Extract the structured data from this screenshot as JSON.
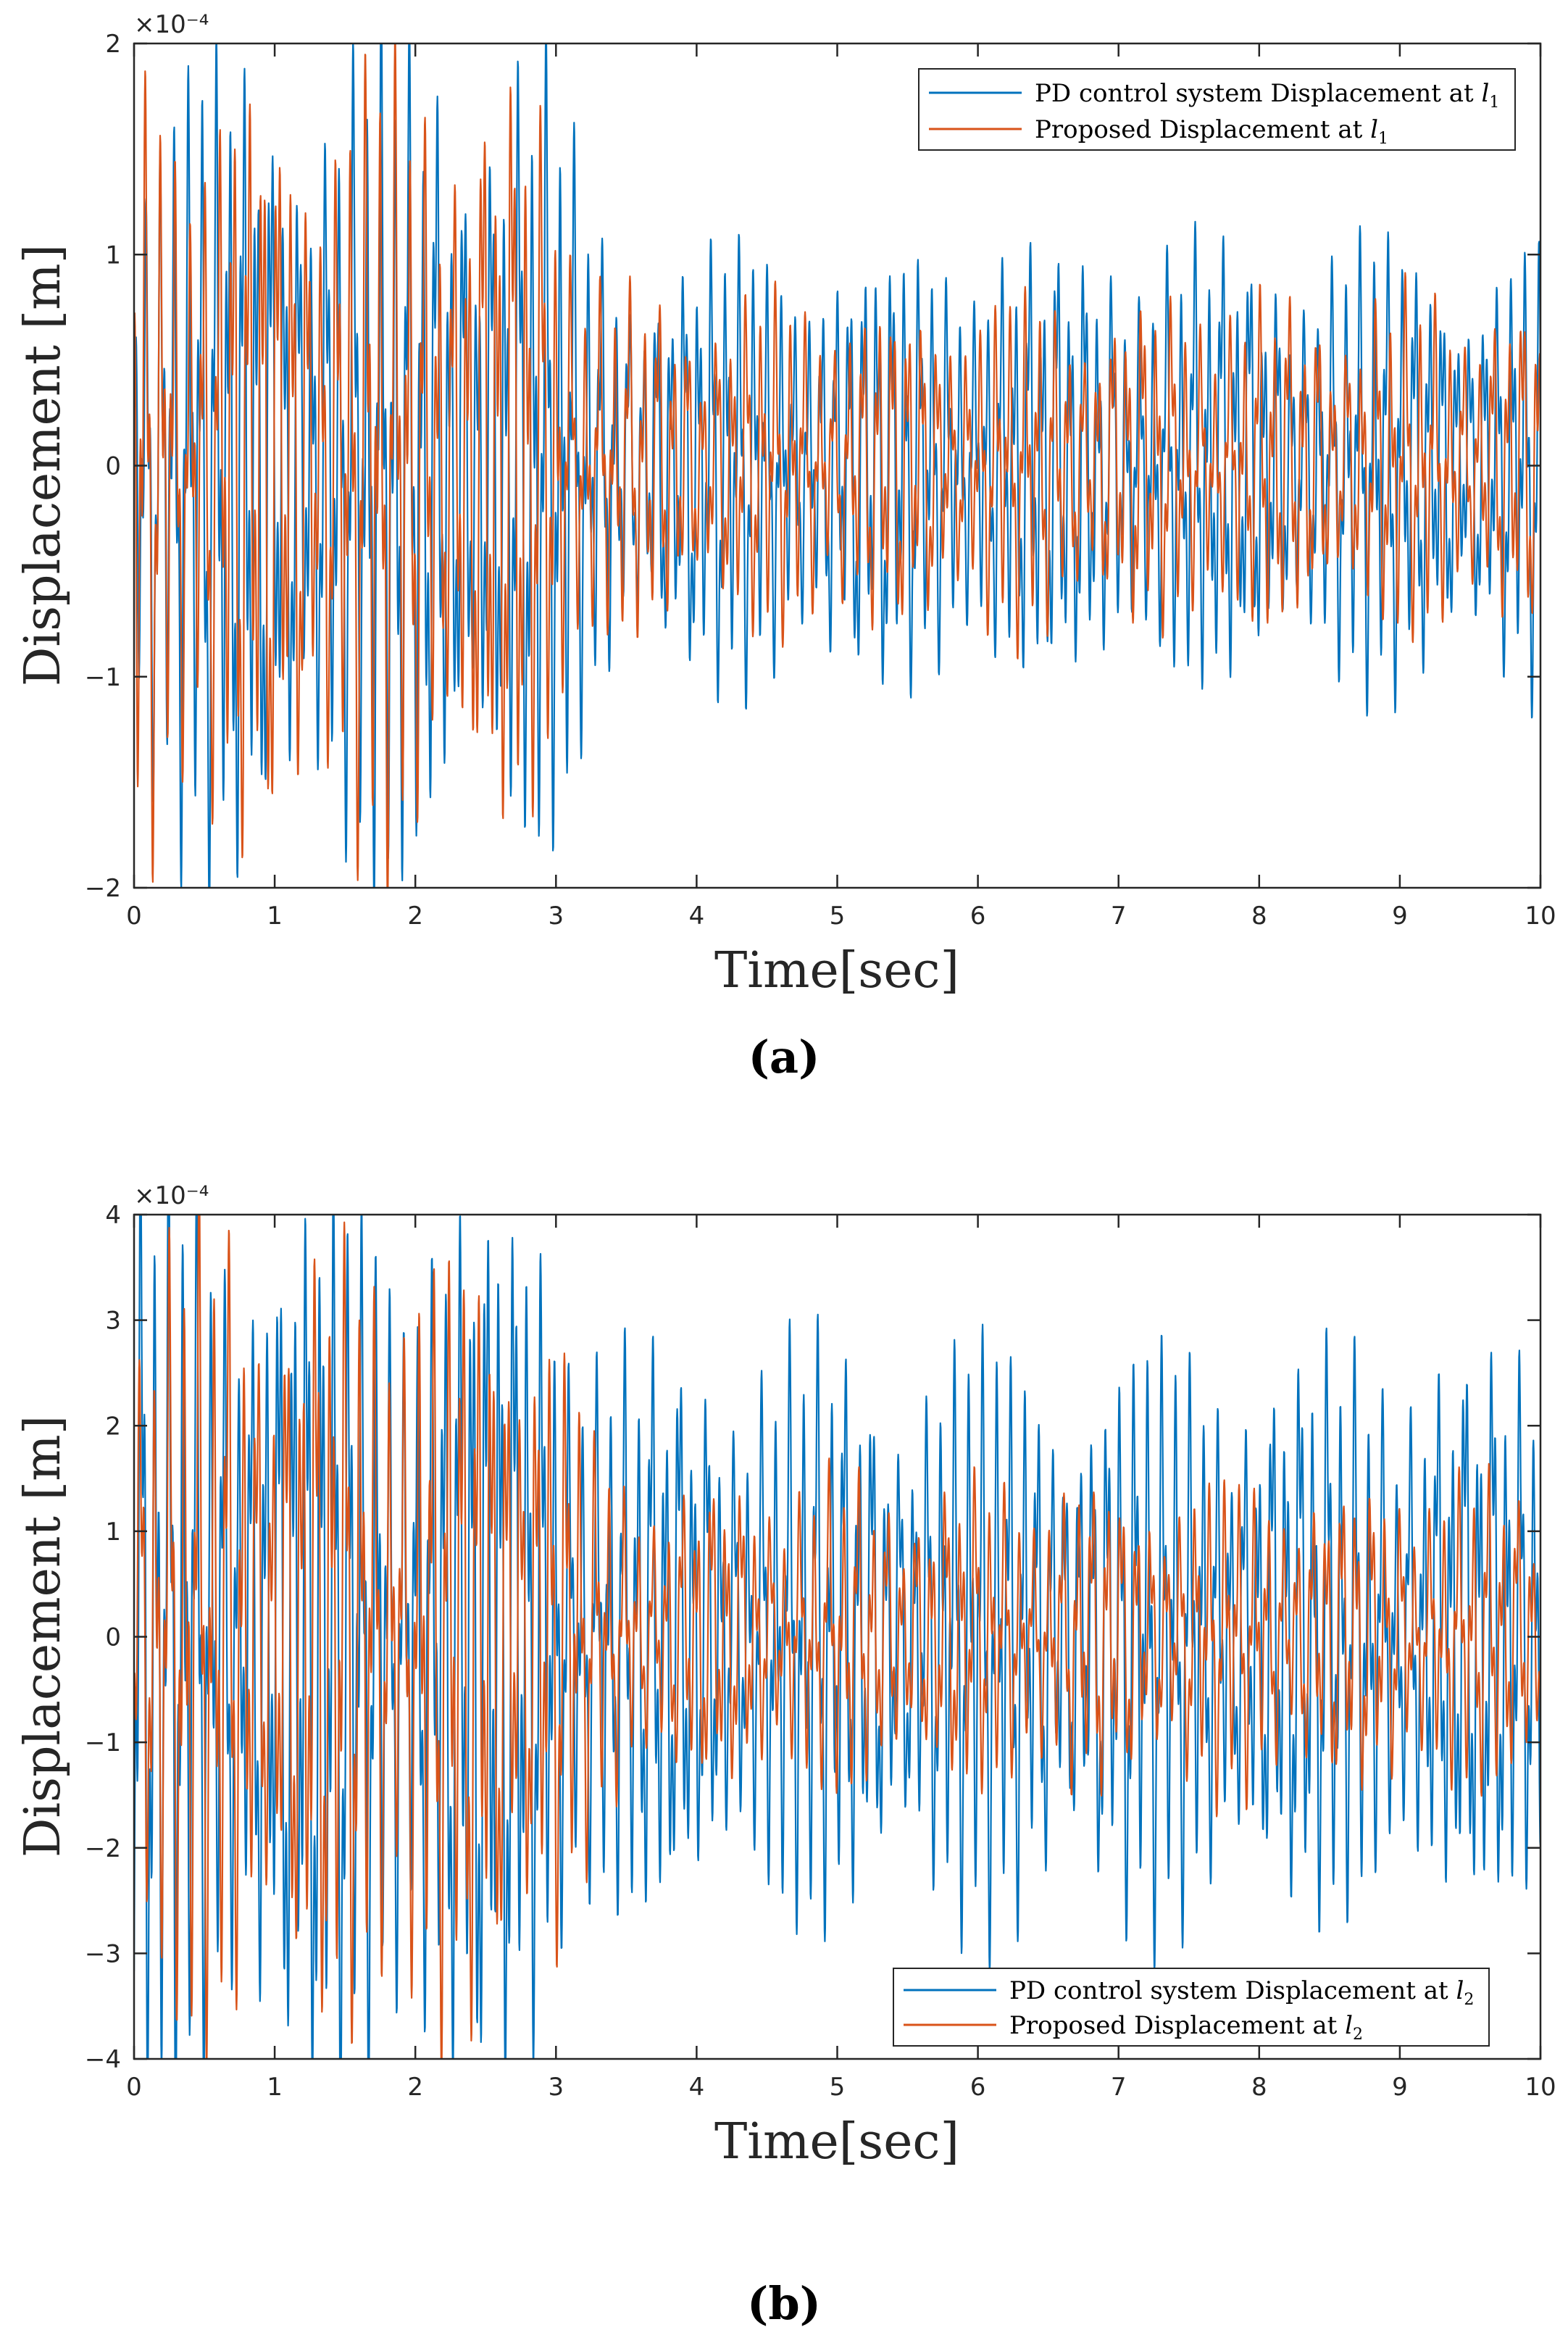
{
  "chart_data": [
    {
      "type": "line",
      "panel_label": "(a)",
      "xlabel": "Time[sec]",
      "ylabel": "Displacement [m]",
      "y_exponent": "×10⁻⁴",
      "xlim": [
        0,
        10
      ],
      "ylim": [
        -2,
        2
      ],
      "xticks": [
        "0",
        "1",
        "2",
        "3",
        "4",
        "5",
        "6",
        "7",
        "8",
        "9",
        "10"
      ],
      "yticks": [
        "−2",
        "−1",
        "0",
        "1",
        "2"
      ],
      "legend_position": "top-right",
      "series": [
        {
          "name": "PD control system Displacement at l1",
          "color": "#0072BD",
          "env_before_3s": 1.85,
          "env_after_3s": 1.0,
          "freq_hz": 10.2,
          "beat_hz": 0.85
        },
        {
          "name": "Proposed Displacement at l1",
          "color": "#D95319",
          "env_before_3s": 1.75,
          "env_after_3s": 0.75,
          "freq_hz": 9.6,
          "beat_hz": 1.1
        }
      ],
      "legend": [
        "PD control system Displacement at ",
        "Proposed Displacement at "
      ],
      "legend_sub": "1"
    },
    {
      "type": "line",
      "panel_label": "(b)",
      "xlabel": "Time[sec]",
      "ylabel": "Displacement [m]",
      "y_exponent": "×10⁻⁴",
      "xlim": [
        0,
        10
      ],
      "ylim": [
        -4,
        4
      ],
      "xticks": [
        "0",
        "1",
        "2",
        "3",
        "4",
        "5",
        "6",
        "7",
        "8",
        "9",
        "10"
      ],
      "yticks": [
        "−4",
        "−3",
        "−2",
        "−1",
        "0",
        "1",
        "2",
        "3",
        "4"
      ],
      "legend_position": "bottom-right",
      "series": [
        {
          "name": "PD control system Displacement at l2",
          "color": "#0072BD",
          "env_before_3s": 4.2,
          "env_after_3s": 2.6,
          "freq_hz": 10.2,
          "beat_hz": 0.85
        },
        {
          "name": "Proposed Displacement at l2",
          "color": "#D95319",
          "env_before_3s": 3.6,
          "env_after_3s": 1.4,
          "freq_hz": 9.6,
          "beat_hz": 1.1
        }
      ],
      "legend": [
        "PD control system Displacement at ",
        "Proposed Displacement at "
      ],
      "legend_sub": "2"
    }
  ]
}
